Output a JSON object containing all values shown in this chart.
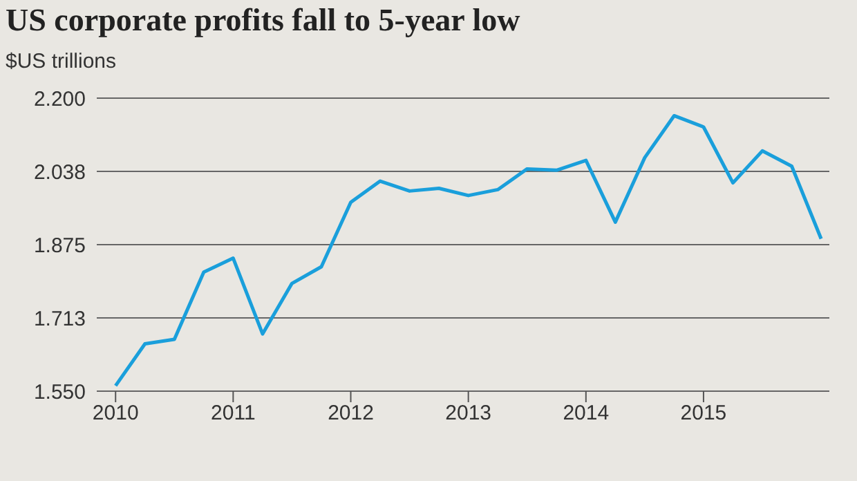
{
  "chart_data": {
    "type": "line",
    "title": "US corporate profits fall to 5-year low",
    "ylabel": "$US trillions",
    "x": [
      2010,
      2010.25,
      2010.5,
      2010.75,
      2011,
      2011.25,
      2011.5,
      2011.75,
      2012,
      2012.25,
      2012.5,
      2012.75,
      2013,
      2013.25,
      2013.5,
      2013.75,
      2014,
      2014.25,
      2014.5,
      2014.75,
      2015,
      2015.25,
      2015.5,
      2015.75,
      2016
    ],
    "series": [
      {
        "color": "#1a9fdb",
        "values": [
          1.562,
          1.655,
          1.665,
          1.814,
          1.845,
          1.677,
          1.789,
          1.826,
          1.969,
          2.016,
          1.994,
          2.0,
          1.984,
          1.997,
          2.043,
          2.04,
          2.062,
          1.925,
          2.068,
          2.161,
          2.136,
          2.012,
          2.083,
          2.049,
          1.888
        ]
      }
    ],
    "xlim": [
      2009.84,
      2016.07
    ],
    "xticks": [
      2010,
      2011,
      2012,
      2013,
      2014,
      2015
    ],
    "ylim": [
      1.55,
      2.2
    ],
    "yticks": [
      {
        "value": 1.55,
        "label": "1.550"
      },
      {
        "value": 1.7125,
        "label": "1.713"
      },
      {
        "value": 1.875,
        "label": "1.875"
      },
      {
        "value": 2.0375,
        "label": "2.038"
      },
      {
        "value": 2.2,
        "label": "2.200"
      }
    ],
    "grid": "y",
    "legend": false,
    "marker": "none",
    "line_style": "solid"
  }
}
